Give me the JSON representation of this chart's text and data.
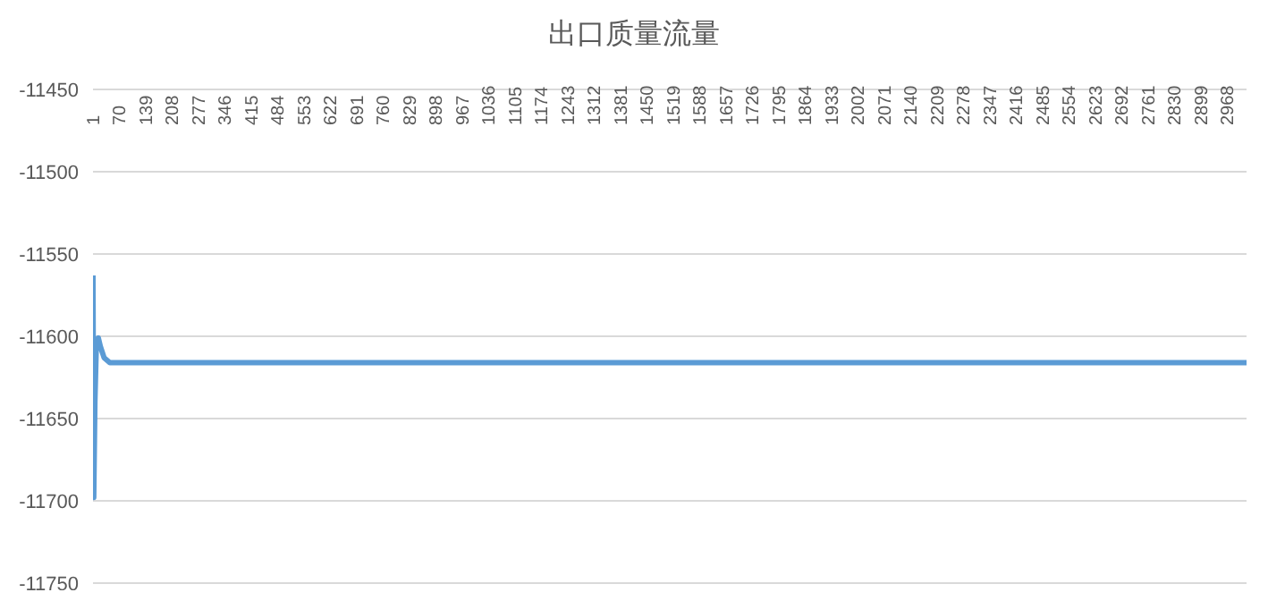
{
  "chart_data": {
    "type": "line",
    "title": "出口质量流量",
    "series": [
      {
        "color": "#5b9bd5",
        "x": [
          1,
          3,
          6,
          10,
          15,
          20,
          30,
          45,
          500,
          1000,
          1500,
          2000,
          2500,
          3019
        ],
        "values": [
          -11563,
          -11698,
          -11640,
          -11603,
          -11601,
          -11606,
          -11613,
          -11616,
          -11616,
          -11616,
          -11616,
          -11616,
          -11616,
          -11616
        ]
      }
    ],
    "xlim": [
      1,
      3019
    ],
    "xticks": [
      1,
      70,
      139,
      208,
      277,
      346,
      415,
      484,
      553,
      622,
      691,
      760,
      829,
      898,
      967,
      1036,
      1105,
      1174,
      1243,
      1312,
      1381,
      1450,
      1519,
      1588,
      1657,
      1726,
      1795,
      1864,
      1933,
      2002,
      2071,
      2140,
      2209,
      2278,
      2347,
      2416,
      2485,
      2554,
      2623,
      2692,
      2761,
      2830,
      2899,
      2968
    ],
    "ylim": [
      -11750,
      -11450
    ],
    "yticks": [
      -11750,
      -11700,
      -11650,
      -11600,
      -11550,
      -11500,
      -11450
    ],
    "grid": "y",
    "marker": "none",
    "line_style": "solid"
  }
}
